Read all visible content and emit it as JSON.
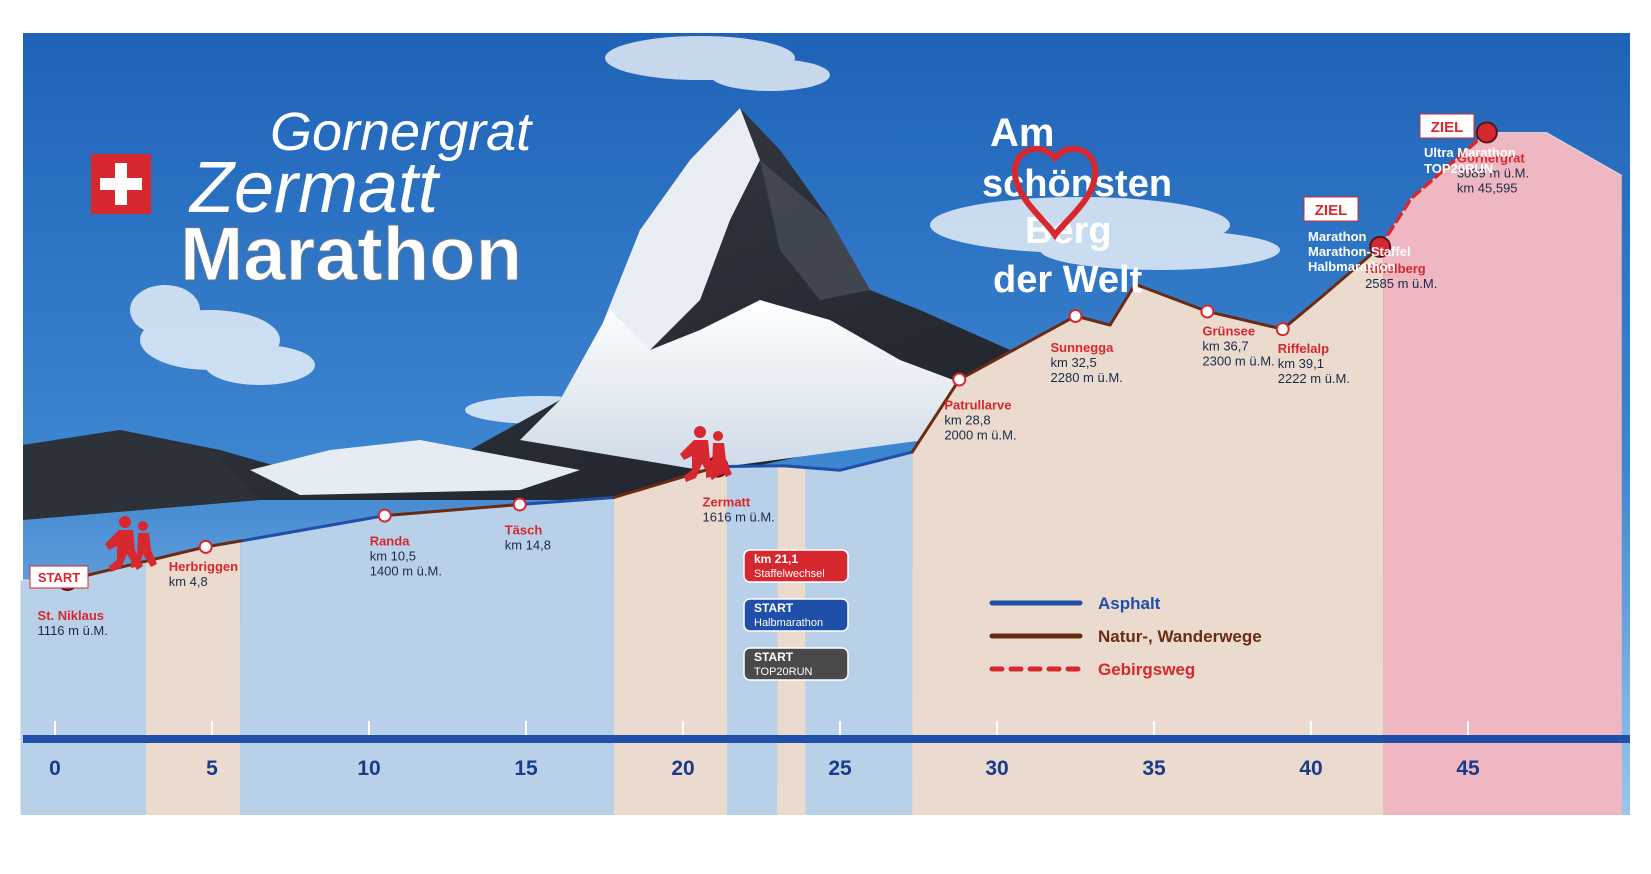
{
  "title": {
    "line1": "Gornergrat",
    "line2": "Zermatt",
    "line3": "Marathon"
  },
  "slogan": {
    "line1": "Am",
    "line2": "schönsten",
    "line3": "Berg",
    "line4": "der Welt"
  },
  "badges": {
    "start": "START",
    "ziel_marathon": "ZIEL",
    "ziel_ultra": "ZIEL"
  },
  "finish_marathon": [
    "Marathon",
    "Marathon-Staffel",
    "Halbmarathon"
  ],
  "finish_ultra": [
    "Ultra Marathon",
    "TOP20RUN"
  ],
  "stations": [
    {
      "id": "st-niklaus",
      "name": "St. Niklaus",
      "lines": [
        "1116 m ü.M."
      ],
      "km": 0.4,
      "alt": 1116
    },
    {
      "id": "herbriggen",
      "name": "Herbriggen",
      "lines": [
        "km 4,8"
      ],
      "km": 4.8,
      "alt": 1262
    },
    {
      "id": "randa",
      "name": "Randa",
      "lines": [
        "km 10,5",
        "1400 m ü.M."
      ],
      "km": 10.5,
      "alt": 1400
    },
    {
      "id": "taesch",
      "name": "Täsch",
      "lines": [
        "km 14,8"
      ],
      "km": 14.8,
      "alt": 1449
    },
    {
      "id": "zermatt",
      "name": "Zermatt",
      "lines": [
        "1616 m ü.M."
      ],
      "km": 21.1,
      "alt": 1616
    },
    {
      "id": "patrullarve",
      "name": "Patrullarve",
      "lines": [
        "km 28,8",
        "2000 m ü.M."
      ],
      "km": 28.8,
      "alt": 2000
    },
    {
      "id": "sunnegga",
      "name": "Sunnegga",
      "lines": [
        "km 32,5",
        "2280 m ü.M."
      ],
      "km": 32.5,
      "alt": 2280
    },
    {
      "id": "gruensee",
      "name": "Grünsee",
      "lines": [
        "km 36,7",
        "2300 m ü.M."
      ],
      "km": 36.7,
      "alt": 2300
    },
    {
      "id": "riffelalp",
      "name": "Riffelalp",
      "lines": [
        "km 39,1",
        "2222 m ü.M."
      ],
      "km": 39.1,
      "alt": 2222
    },
    {
      "id": "riffelberg",
      "name": "Riffelberg",
      "lines": [
        "2585 m ü.M."
      ],
      "km": 42.2,
      "alt": 2585
    },
    {
      "id": "gornergrat",
      "name": "Gornergrat",
      "lines": [
        "3089 m ü.M.",
        "km 45,595"
      ],
      "km": 45.6,
      "alt": 3089
    }
  ],
  "zermatt_boxes": [
    {
      "id": "staffelwechsel",
      "line1": "km 21,1",
      "line2": "Staffelwechsel",
      "color": "#d7282f"
    },
    {
      "id": "halbmarathon",
      "line1": "START",
      "line2": "Halbmarathon",
      "color": "#1f4fa8"
    },
    {
      "id": "top20run",
      "line1": "START",
      "line2": "TOP20RUN",
      "color": "#4a4a4a"
    }
  ],
  "legend": [
    {
      "id": "asphalt",
      "label": "Asphalt",
      "color": "#1f4fa8",
      "style": "solid"
    },
    {
      "id": "natur",
      "label": "Natur-, Wanderwege",
      "color": "#6b2a12",
      "style": "solid"
    },
    {
      "id": "gebirgsweg",
      "label": "Gebirgsweg",
      "color": "#d7282f",
      "style": "dashed"
    }
  ],
  "x_axis": {
    "ticks": [
      0,
      5,
      10,
      15,
      20,
      25,
      30,
      35,
      40,
      45
    ]
  },
  "colors": {
    "sky_top": "#2a6fc2",
    "sky_bottom": "#8dbce6",
    "band_blue": "#b9d1e8",
    "band_beige": "#eadbce",
    "band_pink": "#efb7c1",
    "accent_red": "#d7282f",
    "axis_blue": "#1f4fa8"
  }
}
